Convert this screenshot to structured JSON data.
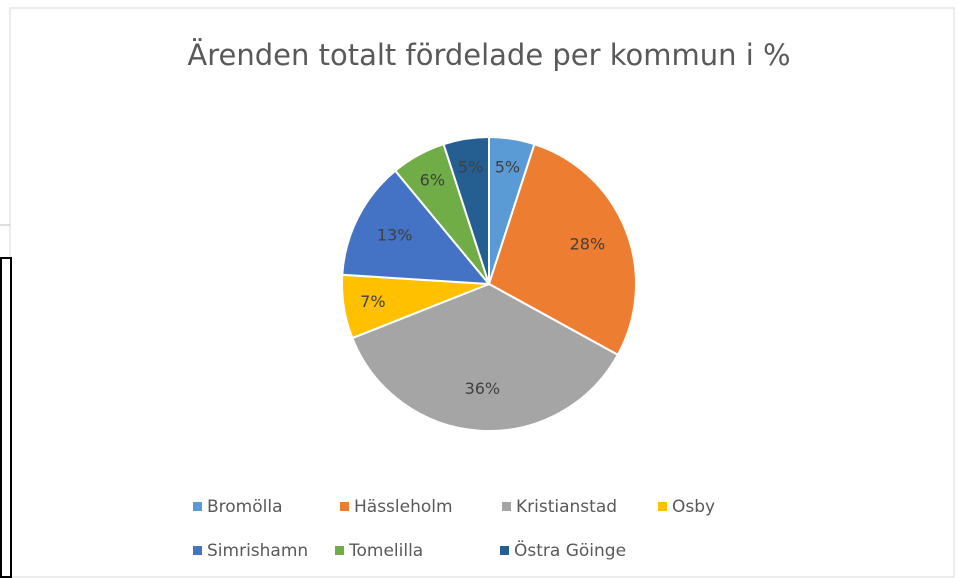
{
  "chart_data": {
    "type": "pie",
    "title": "Ärenden totalt fördelade per kommun i %",
    "categories": [
      "Bromölla",
      "Hässleholm",
      "Kristianstad",
      "Osby",
      "Simrishamn",
      "Tomelilla",
      "Östra Göinge"
    ],
    "values": [
      5,
      28,
      36,
      7,
      13,
      6,
      5
    ],
    "value_labels": [
      "5%",
      "28%",
      "36%",
      "7%",
      "13%",
      "6%",
      "5%"
    ],
    "colors": [
      "#5b9bd5",
      "#ed7d31",
      "#a5a5a5",
      "#ffc000",
      "#4472c4",
      "#70ad47",
      "#255e91"
    ],
    "legend": "bottom"
  }
}
